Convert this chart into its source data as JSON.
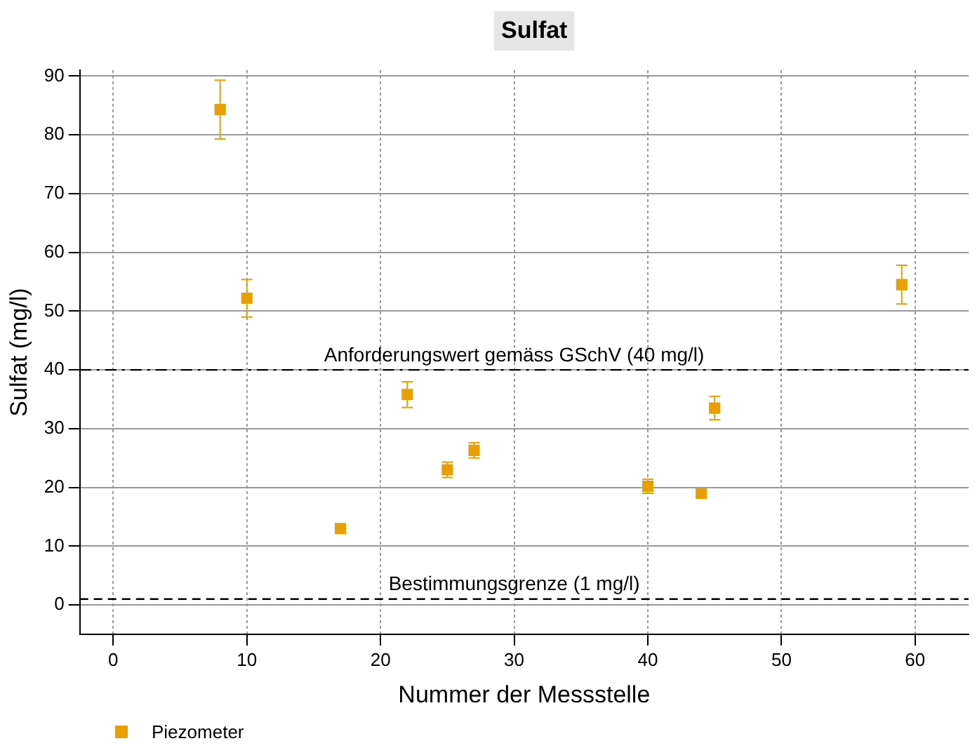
{
  "chart_data": {
    "type": "scatter",
    "title": "Sulfat",
    "xlabel": "Nummer der Messstelle",
    "ylabel": "Sulfat (mg/l)",
    "x": [
      8,
      10,
      17,
      22,
      25,
      27,
      40,
      44,
      45,
      59
    ],
    "series": [
      {
        "name": "Piezometer",
        "color": "#e8a000",
        "values": [
          84.3,
          52.2,
          13,
          35.8,
          23,
          26.3,
          20.2,
          19,
          33.5,
          54.5
        ],
        "errors": [
          5,
          3.2,
          null,
          2.2,
          1.3,
          1.3,
          1.2,
          null,
          2,
          3.3
        ]
      }
    ],
    "xlim": [
      -2.5,
      64
    ],
    "xticks": [
      0,
      10,
      20,
      30,
      40,
      50,
      60
    ],
    "ylim": [
      -5,
      91
    ],
    "yticks": [
      0,
      10,
      20,
      30,
      40,
      50,
      60,
      70,
      80,
      90
    ],
    "ref_lines": [
      {
        "axis": "y",
        "value": 40,
        "label": "Anforderungswert gemäss GSchV (40 mg/l)",
        "line_style": "dashdot",
        "color": "#000000"
      },
      {
        "axis": "y",
        "value": 1,
        "label": "Bestimmungsgrenze (1 mg/l)",
        "line_style": "dashed",
        "color": "#000000"
      }
    ],
    "grid": true,
    "legend": "bottom left",
    "marker": "square"
  }
}
